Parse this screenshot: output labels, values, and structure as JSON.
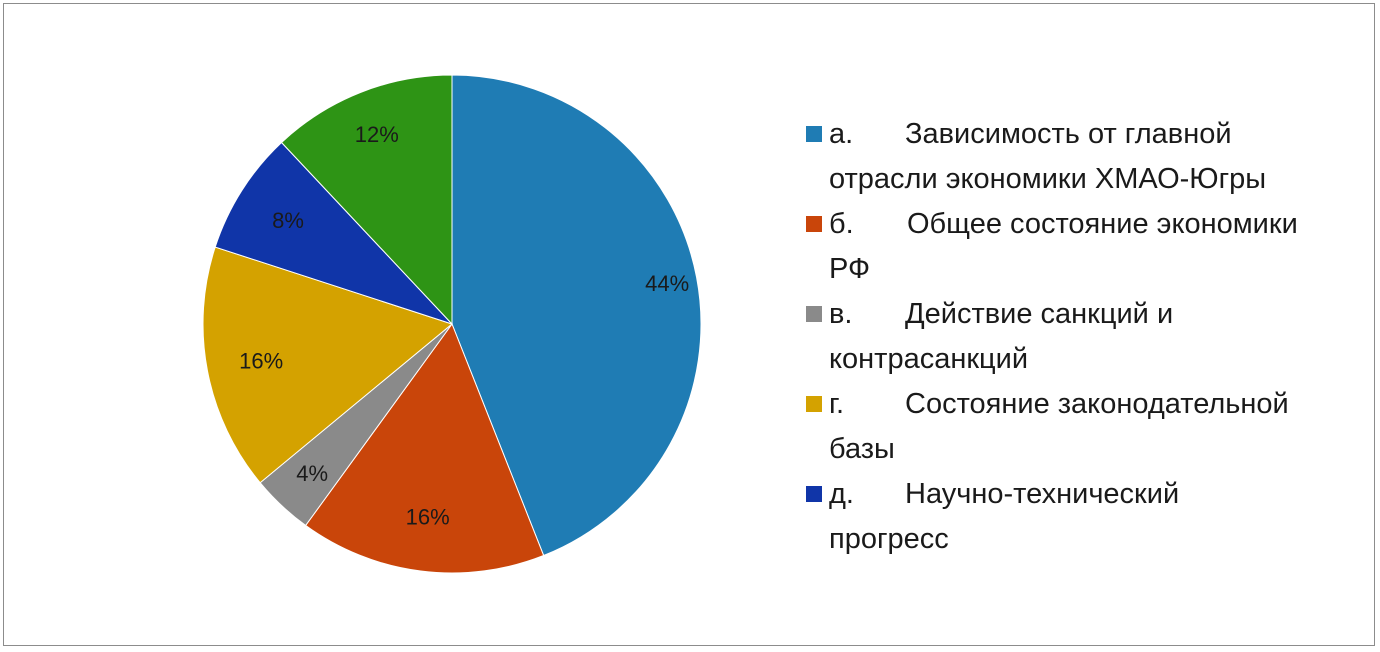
{
  "chart_data": {
    "type": "pie",
    "title": "",
    "start_angle_deg": 0,
    "direction": "clockwise",
    "legend_position": "right",
    "slices": [
      {
        "letter": "а.",
        "label": "Зависимость от главной отрасли экономики ХМАО-Югры",
        "value": 44,
        "display": "44%",
        "color": "#1f7cb4"
      },
      {
        "letter": "б.",
        "label": "Общее состояние экономики РФ",
        "value": 16,
        "display": "16%",
        "color": "#c9450a"
      },
      {
        "letter": "в.",
        "label": "Действие санкций и контрасанкций",
        "value": 4,
        "display": "4%",
        "color": "#8a8a8a"
      },
      {
        "letter": "г.",
        "label": "Состояние законодательной базы",
        "value": 16,
        "display": "16%",
        "color": "#d4a200"
      },
      {
        "letter": "д.",
        "label": "Научно-технический прогресс",
        "value": 8,
        "display": "8%",
        "color": "#1035a8"
      },
      {
        "letter": "",
        "label": "",
        "value": 12,
        "display": "12%",
        "color": "#2e9415"
      }
    ]
  },
  "legend": {
    "items": [
      {
        "letter": "а.",
        "text_line1": "Зависимость от главной",
        "text_line2": "отрасли экономики ХМАО-Югры",
        "color": "#1f7cb4"
      },
      {
        "letter": "б.",
        "text_line1": "Общее состояние экономики",
        "text_line2": "РФ",
        "color": "#c9450a"
      },
      {
        "letter": "в.",
        "text_line1": "Действие санкций и",
        "text_line2": "контрасанкций",
        "color": "#8a8a8a"
      },
      {
        "letter": "г.",
        "text_line1": "Состояние законодательной",
        "text_line2": "базы",
        "color": "#d4a200"
      },
      {
        "letter": "д.",
        "text_line1": "Научно-технический",
        "text_line2": "прогресс",
        "color": "#1035a8"
      }
    ]
  }
}
